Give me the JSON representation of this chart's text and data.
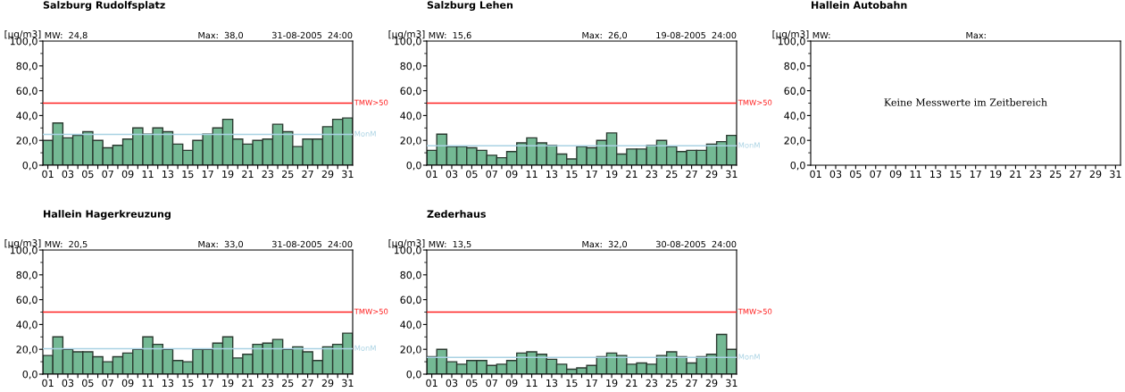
{
  "chart_data": [
    {
      "type": "bar",
      "title": "Salzburg Rudolfsplatz",
      "ylabel": "[µg/m3]",
      "annotations": [
        "MW:  24,8",
        "Max:  38,0",
        "31-08-2005  24:00"
      ],
      "categories": [
        "01",
        null,
        "03",
        null,
        "05",
        null,
        "07",
        null,
        "09",
        null,
        "11",
        null,
        "13",
        null,
        "15",
        null,
        "17",
        null,
        "19",
        null,
        "21",
        null,
        "23",
        null,
        "25",
        null,
        "27",
        null,
        "29",
        null,
        "31"
      ],
      "values": [
        20,
        34,
        22,
        24,
        27,
        20,
        14,
        16,
        21,
        30,
        25,
        30,
        27,
        17,
        12,
        20,
        25,
        30,
        37,
        21,
        17,
        20,
        21,
        33,
        27,
        15,
        21,
        21,
        31,
        37,
        38
      ],
      "color": "#74b994",
      "ylim": [
        0,
        100
      ],
      "yticks": [
        {
          "value": 0,
          "label": "0,0"
        },
        {
          "value": 20,
          "label": "20,0"
        },
        {
          "value": 40,
          "label": "40,0"
        },
        {
          "value": 60,
          "label": "60,0"
        },
        {
          "value": 80,
          "label": "80,0"
        },
        {
          "value": 100,
          "label": "100,0"
        }
      ],
      "ref_lines": [
        {
          "axis": "y",
          "value": 50,
          "label": "TMW>50",
          "color": "#ff2020"
        },
        {
          "axis": "y",
          "value": 24.8,
          "label": "MonM",
          "color": "#a9d2e3"
        }
      ],
      "grid": false,
      "legend": false
    },
    {
      "type": "bar",
      "title": "Salzburg Lehen",
      "ylabel": "[µg/m3]",
      "annotations": [
        "MW:  15,6",
        "Max:  26,0",
        "19-08-2005  24:00"
      ],
      "categories": [
        "01",
        null,
        "03",
        null,
        "05",
        null,
        "07",
        null,
        "09",
        null,
        "11",
        null,
        "13",
        null,
        "15",
        null,
        "17",
        null,
        "19",
        null,
        "21",
        null,
        "23",
        null,
        "25",
        null,
        "27",
        null,
        "29",
        null,
        "31"
      ],
      "values": [
        12,
        25,
        15,
        15,
        14,
        12,
        8,
        6,
        11,
        18,
        22,
        18,
        16,
        9,
        5,
        15,
        14,
        20,
        26,
        9,
        13,
        13,
        16,
        20,
        15,
        11,
        12,
        12,
        17,
        19,
        24
      ],
      "color": "#74b994",
      "ylim": [
        0,
        100
      ],
      "yticks": [
        {
          "value": 0,
          "label": "0,0"
        },
        {
          "value": 20,
          "label": "20,0"
        },
        {
          "value": 40,
          "label": "40,0"
        },
        {
          "value": 60,
          "label": "60,0"
        },
        {
          "value": 80,
          "label": "80,0"
        },
        {
          "value": 100,
          "label": "100,0"
        }
      ],
      "ref_lines": [
        {
          "axis": "y",
          "value": 50,
          "label": "TMW>50",
          "color": "#ff2020"
        },
        {
          "axis": "y",
          "value": 15.6,
          "label": "MonM",
          "color": "#a9d2e3"
        }
      ],
      "grid": false,
      "legend": false
    },
    {
      "type": "bar",
      "title": "Hallein Autobahn",
      "ylabel": "[µg/m3]",
      "annotations": [
        "MW:",
        "Max:",
        "Keine Messwerte im Zeitbereich"
      ],
      "categories": [
        "01",
        null,
        "03",
        null,
        "05",
        null,
        "07",
        null,
        "09",
        null,
        "11",
        null,
        "13",
        null,
        "15",
        null,
        "17",
        null,
        "19",
        null,
        "21",
        null,
        "23",
        null,
        "25",
        null,
        "27",
        null,
        "29",
        null,
        "31"
      ],
      "values": [
        null,
        null,
        null,
        null,
        null,
        null,
        null,
        null,
        null,
        null,
        null,
        null,
        null,
        null,
        null,
        null,
        null,
        null,
        null,
        null,
        null,
        null,
        null,
        null,
        null,
        null,
        null,
        null,
        null,
        null,
        null
      ],
      "color": "#74b994",
      "ylim": [
        0,
        100
      ],
      "yticks": [
        {
          "value": 0,
          "label": "0,0"
        },
        {
          "value": 20,
          "label": "20,0"
        },
        {
          "value": 40,
          "label": "40,0"
        },
        {
          "value": 60,
          "label": "60,0"
        },
        {
          "value": 80,
          "label": "80,0"
        },
        {
          "value": 100,
          "label": "100,0"
        }
      ],
      "grid": false,
      "legend": false
    },
    {
      "type": "bar",
      "title": "Hallein Hagerkreuzung",
      "ylabel": "[µg/m3]",
      "annotations": [
        "MW:  20,5",
        "Max:  33,0",
        "31-08-2005  24:00"
      ],
      "categories": [
        "01",
        null,
        "03",
        null,
        "05",
        null,
        "07",
        null,
        "09",
        null,
        "11",
        null,
        "13",
        null,
        "15",
        null,
        "17",
        null,
        "19",
        null,
        "21",
        null,
        "23",
        null,
        "25",
        null,
        "27",
        null,
        "29",
        null,
        "31"
      ],
      "values": [
        15,
        30,
        20,
        18,
        18,
        14,
        10,
        14,
        17,
        20,
        30,
        24,
        20,
        11,
        10,
        20,
        20,
        25,
        30,
        13,
        16,
        24,
        25,
        28,
        20,
        22,
        18,
        11,
        22,
        24,
        33
      ],
      "color": "#74b994",
      "ylim": [
        0,
        100
      ],
      "yticks": [
        {
          "value": 0,
          "label": "0,0"
        },
        {
          "value": 20,
          "label": "20,0"
        },
        {
          "value": 40,
          "label": "40,0"
        },
        {
          "value": 60,
          "label": "60,0"
        },
        {
          "value": 80,
          "label": "80,0"
        },
        {
          "value": 100,
          "label": "100,0"
        }
      ],
      "ref_lines": [
        {
          "axis": "y",
          "value": 50,
          "label": "TMW>50",
          "color": "#ff2020"
        },
        {
          "axis": "y",
          "value": 20.5,
          "label": "MonM",
          "color": "#a9d2e3"
        }
      ],
      "grid": false,
      "legend": false
    },
    {
      "type": "bar",
      "title": "Zederhaus",
      "ylabel": "[µg/m3]",
      "annotations": [
        "MW:  13,5",
        "Max:  32,0",
        "30-08-2005  24:00"
      ],
      "categories": [
        "01",
        null,
        "03",
        null,
        "05",
        null,
        "07",
        null,
        "09",
        null,
        "11",
        null,
        "13",
        null,
        "15",
        null,
        "17",
        null,
        "19",
        null,
        "21",
        null,
        "23",
        null,
        "25",
        null,
        "27",
        null,
        "29",
        null,
        "31"
      ],
      "values": [
        14,
        20,
        10,
        8,
        11,
        11,
        7,
        8,
        11,
        17,
        18,
        16,
        12,
        8,
        4,
        5,
        7,
        14,
        17,
        15,
        8,
        9,
        8,
        15,
        18,
        14,
        9,
        14,
        16,
        32,
        20
      ],
      "color": "#74b994",
      "ylim": [
        0,
        100
      ],
      "yticks": [
        {
          "value": 0,
          "label": "0,0"
        },
        {
          "value": 20,
          "label": "20,0"
        },
        {
          "value": 40,
          "label": "40,0"
        },
        {
          "value": 60,
          "label": "60,0"
        },
        {
          "value": 80,
          "label": "80,0"
        },
        {
          "value": 100,
          "label": "100,0"
        }
      ],
      "ref_lines": [
        {
          "axis": "y",
          "value": 50,
          "label": "TMW>50",
          "color": "#ff2020"
        },
        {
          "axis": "y",
          "value": 13.5,
          "label": "MonM",
          "color": "#a9d2e3"
        }
      ],
      "grid": false,
      "legend": false
    }
  ]
}
